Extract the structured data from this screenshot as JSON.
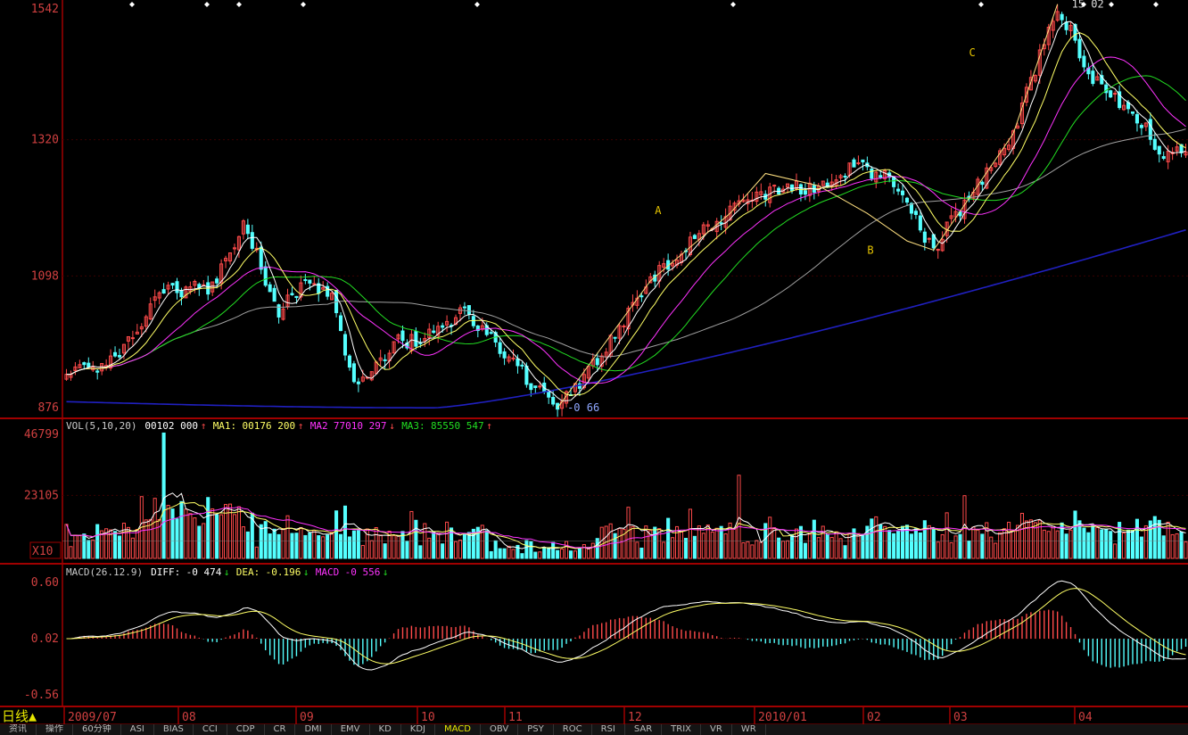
{
  "colors": {
    "up": "#ff4a4a",
    "down": "#54ffff",
    "frame": "#a00000",
    "axis_text": "#d04040",
    "ma5": "#ffffff",
    "ma10": "#ffff66",
    "ma20": "#ff33ff",
    "ma30": "#22dd22",
    "ma60": "#a0a0a0",
    "ma250": "#2020c0",
    "wave": "#ffe080"
  },
  "chart_data": [
    {
      "type": "candlestick",
      "panel": "price",
      "y_ticks": [
        "1542",
        "1320",
        "1098",
        "876"
      ],
      "ylim": [
        876,
        1542
      ],
      "dates": [
        "2009/07",
        "08",
        "09",
        "10",
        "11",
        "12",
        "2010/01",
        "02",
        "03",
        "04"
      ],
      "annotations": [
        {
          "text": "A",
          "bar": 133,
          "price": 1205
        },
        {
          "text": "B",
          "bar": 181,
          "price": 1140
        },
        {
          "text": "C",
          "bar": 204,
          "price": 1462
        },
        {
          "text": "15 02",
          "bar": 226,
          "price": 1541
        },
        {
          "text": "-0 66",
          "bar": 112,
          "price": 883
        }
      ],
      "high_point": {
        "bar": 224,
        "price": 1541
      },
      "low_point": {
        "bar": 111,
        "price": 883
      }
    },
    {
      "type": "bar",
      "panel": "volume",
      "header": {
        "name": "VOL(5,10,20)",
        "values": [
          {
            "label": "",
            "value": "00102 000",
            "arrow": "↑"
          },
          {
            "label": "MA1:",
            "value": "00176 200",
            "arrow": "↑"
          },
          {
            "label": "MA2",
            "value": "77010 297",
            "arrow": "↓"
          },
          {
            "label": "MA3:",
            "value": "85550 547",
            "arrow": "↑"
          }
        ]
      },
      "y_ticks": [
        "46799",
        "23105"
      ],
      "unit": "X10",
      "ylim": [
        0,
        46799
      ]
    },
    {
      "type": "bar",
      "panel": "macd",
      "header": {
        "name": "MACD(26.12.9)",
        "values": [
          {
            "label": "DIFF:",
            "value": "-0 474",
            "arrow": "↓"
          },
          {
            "label": "DEA:",
            "value": "-0.196",
            "arrow": "↓"
          },
          {
            "label": "MACD",
            "value": "-0 556",
            "arrow": "↓"
          }
        ]
      },
      "y_ticks": [
        "0.60",
        "0.02",
        "-0.56"
      ],
      "ylim": [
        -0.56,
        0.6
      ]
    }
  ],
  "period_label": "日线▲",
  "tabs": [
    "资讯",
    "操作",
    "60分钟",
    "ASI",
    "BIAS",
    "CCI",
    "CDP",
    "CR",
    "DMI",
    "EMV",
    "KD",
    "KDJ",
    "MACD",
    "OBV",
    "PSY",
    "ROC",
    "RSI",
    "SAR",
    "TRIX",
    "VR",
    "WR"
  ],
  "active_tab": "MACD"
}
